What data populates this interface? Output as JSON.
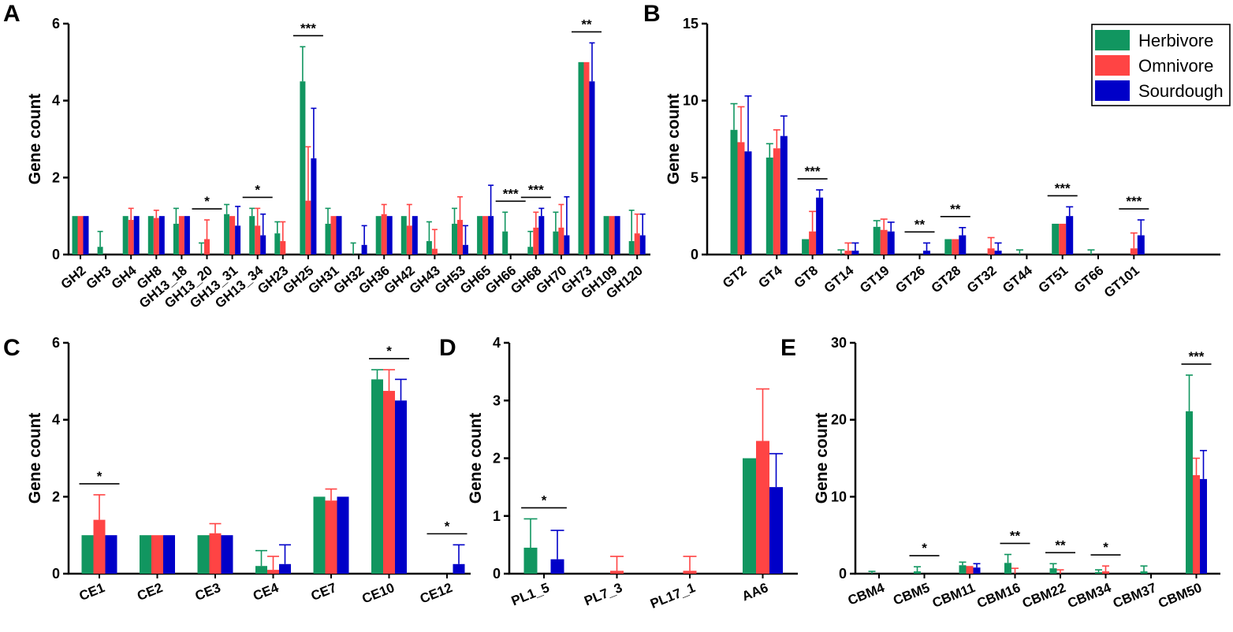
{
  "series_names": [
    "Herbivore",
    "Omnivore",
    "Sourdough"
  ],
  "series_colors": [
    "#119660",
    "#ff4444",
    "#0000c8"
  ],
  "chart_data": [
    {
      "id": "A",
      "type": "bar",
      "ylabel": "Gene count",
      "ylim": [
        0,
        6
      ],
      "yticks": [
        0,
        2,
        4,
        6
      ],
      "categories": [
        "GH2",
        "GH3",
        "GH4",
        "GH8",
        "GH13_18",
        "GH13_20",
        "GH13_31",
        "GH13_34",
        "GH23",
        "GH25",
        "GH31",
        "GH32",
        "GH36",
        "GH42",
        "GH43",
        "GH53",
        "GH65",
        "GH66",
        "GH68",
        "GH70",
        "GH73",
        "GH109",
        "GH120"
      ],
      "series": [
        {
          "name": "Herbivore",
          "values": [
            1,
            0.2,
            1,
            1,
            0.8,
            0,
            1.05,
            1,
            0.55,
            4.5,
            0.8,
            0,
            1,
            1,
            0.35,
            0.8,
            1,
            0.6,
            0.2,
            0.6,
            5,
            1,
            0.35
          ],
          "errors": [
            0,
            0.4,
            0,
            0,
            0.4,
            0.3,
            0.25,
            0.2,
            0.3,
            0.9,
            0.4,
            0.3,
            0,
            0,
            0.5,
            0.4,
            0,
            0.5,
            0.4,
            0.5,
            0,
            0,
            0.8
          ]
        },
        {
          "name": "Omnivore",
          "values": [
            1,
            0,
            0.9,
            0.95,
            1,
            0.4,
            1,
            0.75,
            0.35,
            1.4,
            1,
            0,
            1.05,
            0.75,
            0.15,
            0.9,
            1,
            0,
            0.7,
            0.7,
            5,
            1,
            0.55
          ],
          "errors": [
            0,
            0,
            0.3,
            0.2,
            0,
            0.5,
            0,
            0.45,
            0.5,
            1.4,
            0,
            0,
            0.25,
            0.55,
            0.5,
            0.6,
            0,
            0,
            0.4,
            0.6,
            0,
            0,
            0.5
          ]
        },
        {
          "name": "Sourdough",
          "values": [
            1,
            0,
            1,
            1,
            1,
            0,
            0.75,
            0.5,
            0,
            2.5,
            1,
            0.25,
            1,
            1,
            0,
            0.25,
            1,
            0,
            1,
            0.5,
            4.5,
            1,
            0.5
          ],
          "errors": [
            0,
            0,
            0,
            0,
            0,
            0,
            0.5,
            0.55,
            0,
            1.3,
            0,
            0.5,
            0,
            0,
            0,
            0.5,
            0.8,
            0,
            0.2,
            1,
            1,
            0,
            0.55
          ]
        }
      ],
      "significance": [
        {
          "category": "GH13_20",
          "label": "*"
        },
        {
          "category": "GH13_34",
          "label": "*"
        },
        {
          "category": "GH25",
          "label": "***"
        },
        {
          "category": "GH66",
          "label": "***"
        },
        {
          "category": "GH68",
          "label": "***"
        },
        {
          "category": "GH73",
          "label": "**"
        }
      ]
    },
    {
      "id": "B",
      "type": "bar",
      "ylabel": "Gene count",
      "ylim": [
        0,
        15
      ],
      "yticks": [
        0,
        5,
        10,
        15
      ],
      "categories": [
        "GT2",
        "GT4",
        "GT8",
        "GT14",
        "GT19",
        "GT26",
        "GT28",
        "GT32",
        "GT44",
        "GT51",
        "GT66",
        "GT101"
      ],
      "series": [
        {
          "name": "Herbivore",
          "values": [
            8.1,
            6.3,
            1,
            0,
            1.8,
            0,
            1,
            0,
            0,
            2,
            0,
            0
          ],
          "errors": [
            1.7,
            0.9,
            0,
            0.3,
            0.4,
            0,
            0,
            0,
            0.3,
            0,
            0.3,
            0
          ]
        },
        {
          "name": "Omnivore",
          "values": [
            7.3,
            6.9,
            1.5,
            0.25,
            1.6,
            0,
            1,
            0.4,
            0,
            2,
            0,
            0.4
          ],
          "errors": [
            2.3,
            1.2,
            1.3,
            0.5,
            0.7,
            0,
            0,
            0.7,
            0,
            0,
            0,
            1
          ]
        },
        {
          "name": "Sourdough",
          "values": [
            6.7,
            7.7,
            3.7,
            0.25,
            1.5,
            0.25,
            1.25,
            0.25,
            0,
            2.5,
            0,
            1.25
          ],
          "errors": [
            3.6,
            1.3,
            0.5,
            0.5,
            0.6,
            0.5,
            0.5,
            0.5,
            0,
            0.6,
            0,
            1
          ]
        }
      ],
      "significance": [
        {
          "category": "GT8",
          "label": "***"
        },
        {
          "category": "GT26",
          "label": "**"
        },
        {
          "category": "GT28",
          "label": "**"
        },
        {
          "category": "GT51",
          "label": "***"
        },
        {
          "category": "GT101",
          "label": "***"
        }
      ],
      "legend": "top-right"
    },
    {
      "id": "C",
      "type": "bar",
      "ylabel": "Gene count",
      "ylim": [
        0,
        6
      ],
      "yticks": [
        0,
        2,
        4,
        6
      ],
      "categories": [
        "CE1",
        "CE2",
        "CE3",
        "CE4",
        "CE7",
        "CE10",
        "CE12"
      ],
      "series": [
        {
          "name": "Herbivore",
          "values": [
            1,
            1,
            1,
            0.2,
            2,
            5.05,
            0
          ],
          "errors": [
            0,
            0,
            0,
            0.4,
            0,
            0.25,
            0
          ]
        },
        {
          "name": "Omnivore",
          "values": [
            1.4,
            1,
            1.05,
            0.1,
            1.9,
            4.75,
            0
          ],
          "errors": [
            0.65,
            0,
            0.25,
            0.35,
            0.3,
            0.55,
            0
          ]
        },
        {
          "name": "Sourdough",
          "values": [
            1,
            1,
            1,
            0.25,
            2,
            4.5,
            0.25
          ],
          "errors": [
            0,
            0,
            0,
            0.5,
            0,
            0.55,
            0.5
          ]
        }
      ],
      "significance": [
        {
          "category": "CE1",
          "label": "*"
        },
        {
          "category": "CE10",
          "label": "*"
        },
        {
          "category": "CE12",
          "label": "*"
        }
      ]
    },
    {
      "id": "D",
      "type": "bar",
      "ylabel": "Gene count",
      "ylim": [
        0,
        4
      ],
      "yticks": [
        0,
        1,
        2,
        3,
        4
      ],
      "categories": [
        "PL1_5",
        "PL7_3",
        "PL17_1",
        "AA6"
      ],
      "series": [
        {
          "name": "Herbivore",
          "values": [
            0.45,
            0,
            0,
            2
          ],
          "errors": [
            0.5,
            0,
            0,
            0
          ]
        },
        {
          "name": "Omnivore",
          "values": [
            0,
            0.05,
            0.05,
            2.3
          ],
          "errors": [
            0,
            0.25,
            0.25,
            0.9
          ]
        },
        {
          "name": "Sourdough",
          "values": [
            0.25,
            0,
            0,
            1.5
          ],
          "errors": [
            0.5,
            0,
            0,
            0.58
          ]
        }
      ],
      "significance": [
        {
          "category": "PL1_5",
          "label": "*"
        }
      ]
    },
    {
      "id": "E",
      "type": "bar",
      "ylabel": "Gene count",
      "ylim": [
        0,
        30
      ],
      "yticks": [
        0,
        10,
        20,
        30
      ],
      "categories": [
        "CBM4",
        "CBM5",
        "CBM11",
        "CBM16",
        "CBM22",
        "CBM34",
        "CBM37",
        "CBM50"
      ],
      "series": [
        {
          "name": "Herbivore",
          "values": [
            0,
            0.3,
            1.1,
            1.4,
            0.7,
            0.2,
            0.3,
            21.1
          ],
          "errors": [
            0.3,
            0.6,
            0.4,
            1.1,
            0.6,
            0.3,
            0.7,
            4.7
          ]
        },
        {
          "name": "Omnivore",
          "values": [
            0,
            0,
            1,
            0,
            0,
            0.3,
            0,
            12.8
          ],
          "errors": [
            0,
            0,
            0,
            0.7,
            0.5,
            0.7,
            0,
            2.2
          ]
        },
        {
          "name": "Sourdough",
          "values": [
            0,
            0,
            0.8,
            0,
            0,
            0,
            0,
            12.3
          ],
          "errors": [
            0,
            0,
            0.5,
            0,
            0,
            0,
            0,
            3.7
          ]
        }
      ],
      "significance": [
        {
          "category": "CBM5",
          "label": "*"
        },
        {
          "category": "CBM16",
          "label": "**"
        },
        {
          "category": "CBM22",
          "label": "**"
        },
        {
          "category": "CBM34",
          "label": "*"
        },
        {
          "category": "CBM50",
          "label": "***"
        }
      ]
    }
  ]
}
